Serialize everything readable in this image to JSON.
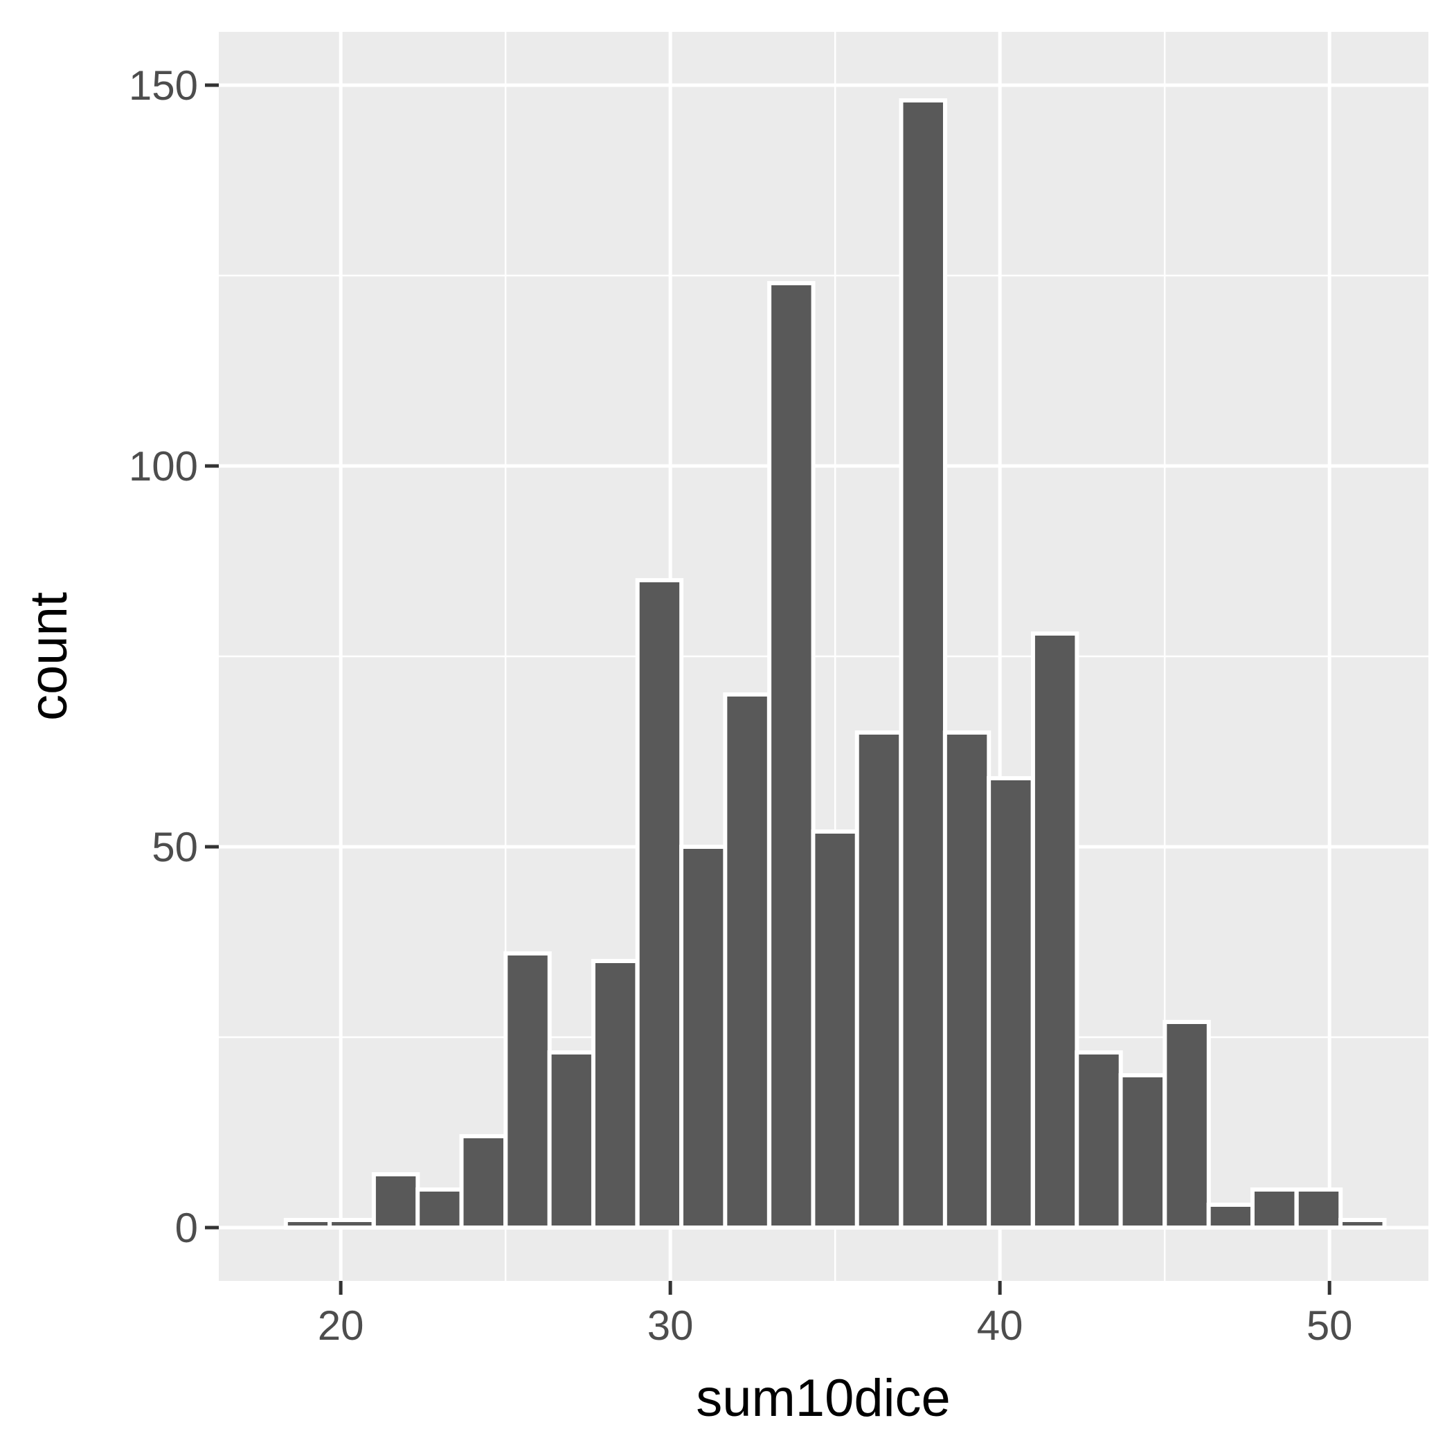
{
  "chart_data": {
    "type": "bar",
    "subtype": "histogram",
    "xlabel": "sum10dice",
    "ylabel": "count",
    "xlim": [
      16.3,
      53.0
    ],
    "ylim": [
      -7,
      157
    ],
    "x_ticks": [
      20,
      30,
      40,
      50
    ],
    "y_ticks": [
      0,
      50,
      100,
      150
    ],
    "grid": true,
    "bin_width": 1.3333,
    "bin_centers": [
      19.0,
      20.33,
      21.67,
      23.0,
      24.33,
      25.67,
      27.0,
      28.33,
      29.67,
      31.0,
      32.33,
      33.67,
      35.0,
      36.33,
      37.67,
      39.0,
      40.33,
      41.67,
      43.0,
      44.33,
      45.67,
      47.0,
      48.33,
      49.67,
      51.0
    ],
    "counts": [
      1,
      1,
      7,
      5,
      12,
      36,
      23,
      35,
      85,
      50,
      70,
      124,
      52,
      65,
      148,
      65,
      59,
      78,
      23,
      20,
      27,
      3,
      5,
      5,
      1
    ],
    "colors": {
      "panel_background": "#ebebeb",
      "grid": "#ffffff",
      "bar_fill": "#595959",
      "bar_outline": "#ffffff",
      "tick_text": "#4d4d4d",
      "axis_title": "#000000",
      "tick_mark": "#333333"
    }
  }
}
